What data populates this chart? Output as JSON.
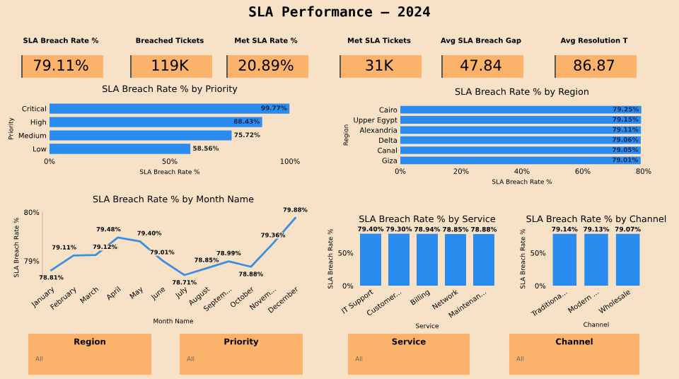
{
  "chart_data": [
    {
      "type": "other",
      "title": "SLA Performance — 2024",
      "categories": [
        "SLA Breach Rate %",
        "Breached Tickets",
        "Met SLA Rate %",
        "Met SLA Tickets",
        "Avg SLA Breach Gap",
        "Avg Resolution T"
      ],
      "value_labels": [
        "79.11%",
        "119K",
        "20.89%",
        "31K",
        "47.84",
        "86.87"
      ],
      "color": "#fbb36c"
    },
    {
      "type": "bar",
      "orientation": "horizontal",
      "title": "SLA Breach Rate % by Priority",
      "xlabel": "SLA Breach Rate %",
      "ylabel": "Priority",
      "categories": [
        "Critical",
        "High",
        "Medium",
        "Low"
      ],
      "values": [
        99.77,
        88.43,
        75.72,
        58.56
      ],
      "value_labels": [
        "99.77%",
        "88.43%",
        "75.72%",
        "58.56%"
      ],
      "color": "#2b8cf0",
      "xlim": [
        0,
        100
      ],
      "xticks": [
        {
          "value": 0,
          "label": "0%"
        },
        {
          "value": 50,
          "label": "50%"
        },
        {
          "value": 100,
          "label": "100%"
        }
      ]
    },
    {
      "type": "bar",
      "orientation": "horizontal",
      "title": "SLA Breach Rate % by Region",
      "xlabel": "SLA Breach Rate %",
      "ylabel": "Region",
      "categories": [
        "Cairo",
        "Upper Egypt",
        "Alexandria",
        "Delta",
        "Canal",
        "Giza"
      ],
      "values": [
        79.25,
        79.15,
        79.11,
        79.06,
        79.05,
        79.01
      ],
      "value_labels": [
        "79.25%",
        "79.15%",
        "79.11%",
        "79.06%",
        "79.05%",
        "79.01%"
      ],
      "color": "#2b8cf0",
      "xlim": [
        0,
        80
      ],
      "xticks": [
        {
          "value": 0,
          "label": "0%"
        },
        {
          "value": 20,
          "label": "20%"
        },
        {
          "value": 40,
          "label": "40%"
        },
        {
          "value": 60,
          "label": "60%"
        },
        {
          "value": 80,
          "label": "80%"
        }
      ]
    },
    {
      "type": "line",
      "title": "SLA Breach Rate % by Month Name",
      "xlabel": "Month Name",
      "ylabel": "SLA Breach Rate %",
      "categories": [
        "January",
        "February",
        "March",
        "April",
        "May",
        "June",
        "July",
        "August",
        "Septem...",
        "October",
        "Novem...",
        "December"
      ],
      "values": [
        78.81,
        79.11,
        79.12,
        79.48,
        79.4,
        79.01,
        78.71,
        78.85,
        78.99,
        78.88,
        79.36,
        79.88
      ],
      "value_labels": [
        "78.81%",
        "79.11%",
        "79.12%",
        "79.48%",
        "79.40%",
        "79.01%",
        "78.71%",
        "78.85%",
        "78.99%",
        "78.88%",
        "79.36%",
        "79.88%"
      ],
      "color": "#3a8fe0",
      "ylim": [
        78.55,
        80.0
      ],
      "yticks": [
        {
          "value": 79,
          "label": "79%"
        },
        {
          "value": 80,
          "label": "80%"
        }
      ],
      "marker": "none",
      "line_style": "solid"
    },
    {
      "type": "bar",
      "title": "SLA Breach Rate % by Service",
      "xlabel": "Service",
      "ylabel": "SLA Breach Rate %",
      "categories": [
        "IT Support",
        "Customer...",
        "Billing",
        "Network",
        "Maintenan..."
      ],
      "values": [
        79.4,
        79.3,
        78.94,
        78.85,
        78.88
      ],
      "value_labels": [
        "79.40%",
        "79.30%",
        "78.94%",
        "78.85%",
        "78.88%"
      ],
      "color": "#2b8cf0",
      "ylim": [
        0,
        82
      ],
      "yticks": [
        {
          "value": 0,
          "label": "0%"
        },
        {
          "value": 50,
          "label": "50%"
        }
      ]
    },
    {
      "type": "bar",
      "title": "SLA Breach Rate % by Channel",
      "xlabel": "Channel",
      "ylabel": "SLA Breach Rate %",
      "categories": [
        "Traditiona...",
        "Modern ...",
        "Wholesale"
      ],
      "values": [
        79.14,
        79.13,
        79.07
      ],
      "value_labels": [
        "79.14%",
        "79.13%",
        "79.07%"
      ],
      "color": "#2b8cf0",
      "ylim": [
        0,
        82
      ],
      "yticks": [
        {
          "value": 0,
          "label": "0%"
        },
        {
          "value": 50,
          "label": "50%"
        }
      ]
    },
    {
      "type": "other",
      "categories": [
        "Region",
        "Priority",
        "Service",
        "Channel"
      ],
      "value_labels": [
        "All",
        "All",
        "All",
        "All"
      ],
      "color": "#fbb36c"
    }
  ]
}
